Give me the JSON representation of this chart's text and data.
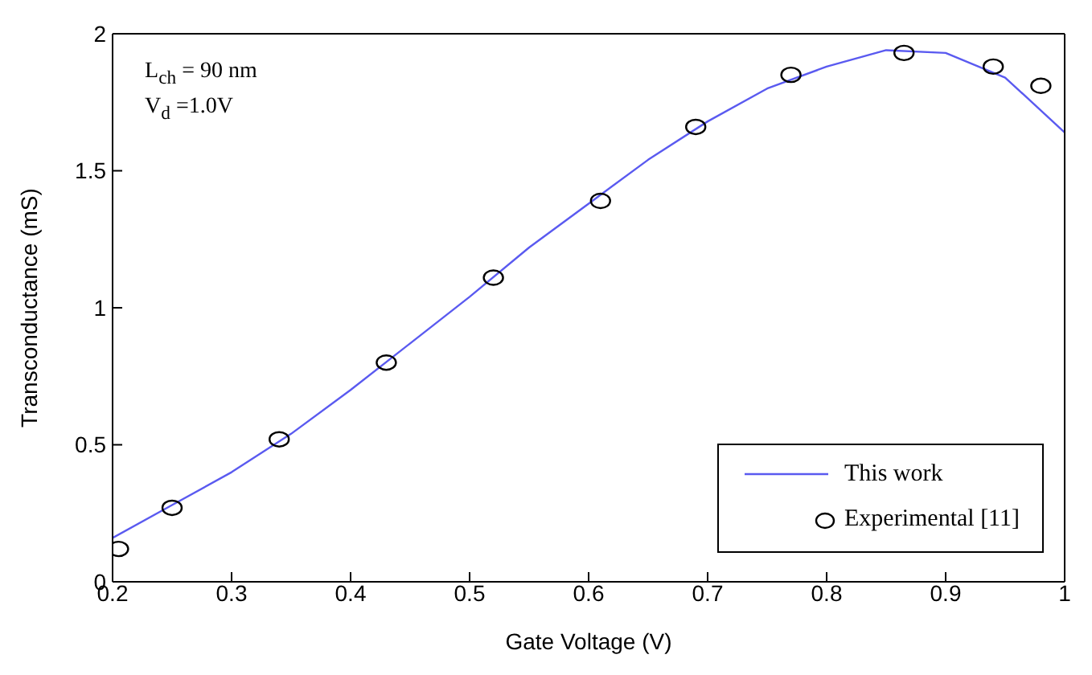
{
  "chart_data": {
    "type": "line",
    "xlabel": "Gate Voltage (V)",
    "ylabel": "Transconductance (mS)",
    "annotations": [
      "L$_{ch}$ = 90 nm",
      "V$_{d}$ =1.0V"
    ],
    "xlim": [
      0.2,
      1
    ],
    "xticks": [
      0.2,
      0.3,
      0.4,
      0.5,
      0.6,
      0.7,
      0.8,
      0.9,
      1
    ],
    "ylim": [
      0,
      2
    ],
    "yticks": [
      0,
      0.5,
      1,
      1.5,
      2
    ],
    "legend": "bottom right",
    "series": [
      {
        "name": "This work",
        "color": "#5a5af0",
        "marker": "none",
        "line_style": "solid",
        "x": [
          0.2,
          0.25,
          0.3,
          0.35,
          0.4,
          0.45,
          0.5,
          0.55,
          0.6,
          0.65,
          0.7,
          0.75,
          0.8,
          0.85,
          0.9,
          0.95,
          1.0
        ],
        "values": [
          0.16,
          0.28,
          0.4,
          0.54,
          0.7,
          0.87,
          1.04,
          1.22,
          1.38,
          1.54,
          1.68,
          1.8,
          1.88,
          1.94,
          1.93,
          1.84,
          1.64
        ]
      },
      {
        "name": "Experimental [11]",
        "type": "scatter",
        "color": "#000000",
        "marker": "circle",
        "x": [
          0.205,
          0.25,
          0.34,
          0.43,
          0.52,
          0.61,
          0.69,
          0.77,
          0.865,
          0.94,
          0.98
        ],
        "values": [
          0.12,
          0.27,
          0.52,
          0.8,
          1.11,
          1.39,
          1.66,
          1.85,
          1.93,
          1.88,
          1.81
        ]
      }
    ]
  }
}
